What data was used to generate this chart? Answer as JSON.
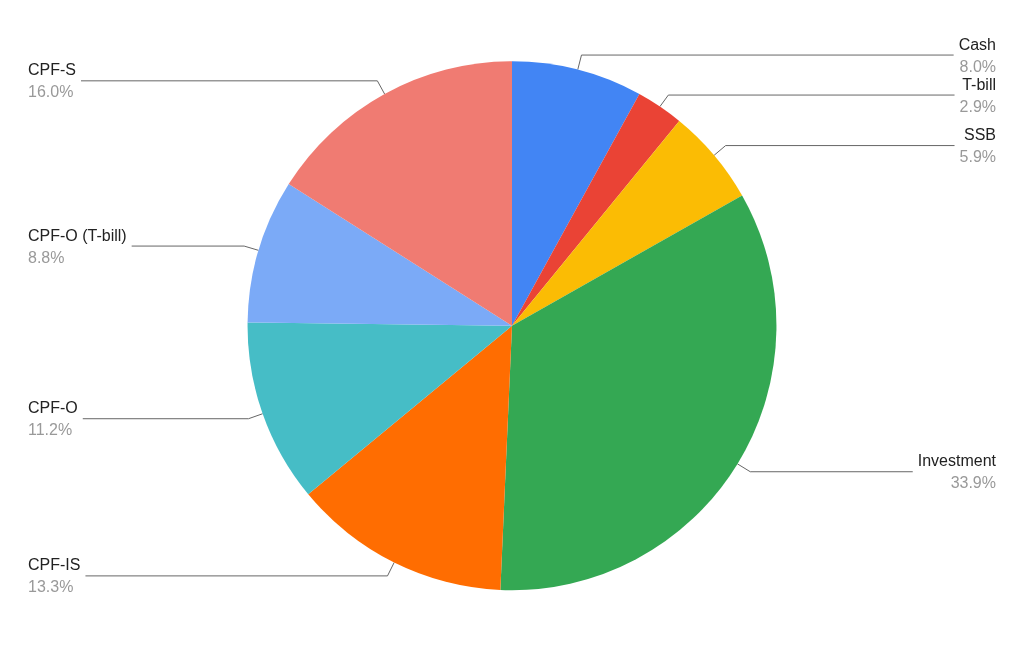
{
  "chart_data": {
    "type": "pie",
    "categories": [
      "Cash",
      "T-bill",
      "SSB",
      "Investment",
      "CPF-IS",
      "CPF-O",
      "CPF-O (T-bill)",
      "CPF-S"
    ],
    "values": [
      8.0,
      2.9,
      5.9,
      33.9,
      13.3,
      11.2,
      8.8,
      16.0
    ],
    "value_labels": [
      "8.0%",
      "2.9%",
      "5.9%",
      "33.9%",
      "13.3%",
      "11.2%",
      "8.8%",
      "16.0%"
    ],
    "colors": [
      "#4285f4",
      "#ea4335",
      "#fbbc04",
      "#34a853",
      "#ff6d01",
      "#46bdc6",
      "#7baaf7",
      "#f07b72"
    ],
    "legend": false
  }
}
